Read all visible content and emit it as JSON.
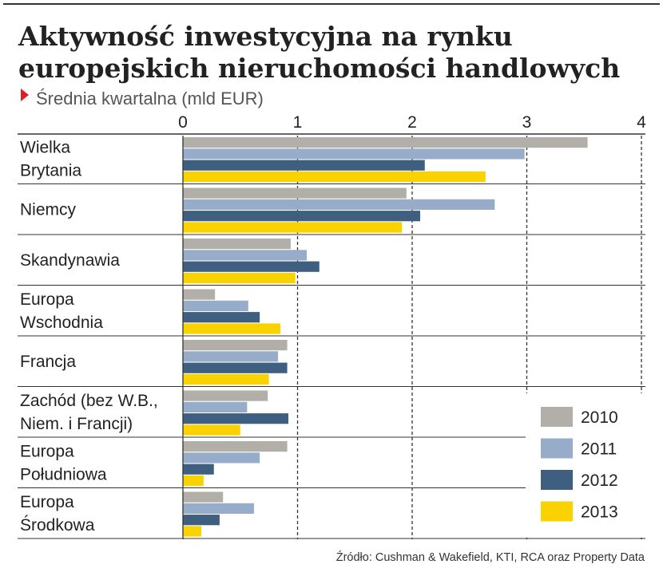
{
  "chart_data": {
    "type": "bar",
    "orientation": "horizontal",
    "title_lines": [
      "Aktywność inwestycyjna na rynku",
      "europejskich nieruchomości handlowych"
    ],
    "subtitle": "Średnia kwartalna (mld EUR)",
    "xlim": [
      0,
      4
    ],
    "ticks": [
      "0",
      "1",
      "2",
      "3",
      "4"
    ],
    "grid": "dashed vertical",
    "legend_position": "bottom-right",
    "categories": [
      [
        "Wielka",
        "Brytania"
      ],
      [
        "Niemcy"
      ],
      [
        "Skandynawia"
      ],
      [
        "Europa",
        "Wschodnia"
      ],
      [
        "Francja"
      ],
      [
        "Zachód (bez W.B.,",
        "Niem. i Francji)"
      ],
      [
        "Europa",
        "Południowa"
      ],
      [
        "Europa",
        "Środkowa"
      ]
    ],
    "series": [
      {
        "name": "2010",
        "color": "#b2afa9",
        "values": [
          3.53,
          1.95,
          0.94,
          0.28,
          0.91,
          0.74,
          0.91,
          0.35
        ]
      },
      {
        "name": "2011",
        "color": "#96acc9",
        "values": [
          2.98,
          2.72,
          1.08,
          0.57,
          0.83,
          0.56,
          0.67,
          0.62
        ]
      },
      {
        "name": "2012",
        "color": "#3f5f81",
        "values": [
          2.11,
          2.07,
          1.19,
          0.67,
          0.91,
          0.92,
          0.27,
          0.32
        ]
      },
      {
        "name": "2013",
        "color": "#f9d200",
        "values": [
          2.64,
          1.91,
          0.98,
          0.85,
          0.75,
          0.5,
          0.18,
          0.16
        ]
      }
    ],
    "source": "Źródło: Cushman & Wakefield, KTI, RCA oraz Property Data"
  },
  "colors": {
    "accent_marker": "#e01e25",
    "text": "#222222",
    "subtitle": "#555555",
    "grid": "#333333"
  }
}
